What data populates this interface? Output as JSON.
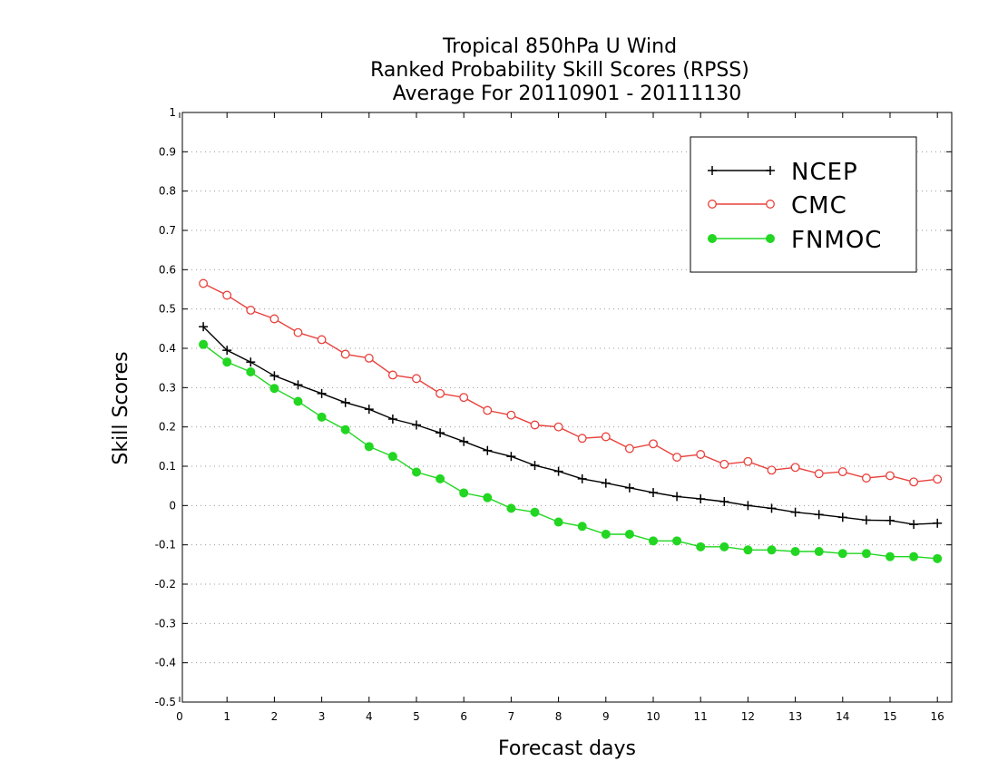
{
  "chart_data": {
    "type": "line",
    "title": [
      "Tropical 850hPa U Wind",
      "Ranked Probability Skill Scores (RPSS)",
      "Average For 20110901 - 20111130"
    ],
    "xlabel": "Forecast days",
    "ylabel": "Skill Scores",
    "xlim": [
      0,
      16.25
    ],
    "ylim": [
      -0.5,
      1
    ],
    "x_ticks": [
      "0",
      "1",
      "2",
      "3",
      "4",
      "5",
      "6",
      "7",
      "8",
      "9",
      "10",
      "11",
      "12",
      "13",
      "14",
      "15",
      "16"
    ],
    "y_ticks": [
      "1",
      "0.9",
      "0.8",
      "0.7",
      "0.6",
      "0.5",
      "0.4",
      "0.3",
      "0.2",
      "0.1",
      "0",
      "-0.1",
      "-0.2",
      "-0.3",
      "-0.4",
      "-0.5"
    ],
    "grid": "horizontal dotted",
    "legend_position": "top-right",
    "x": [
      0.5,
      1,
      1.5,
      2,
      2.5,
      3,
      3.5,
      4,
      4.5,
      5,
      5.5,
      6,
      6.5,
      7,
      7.5,
      8,
      8.5,
      9,
      9.5,
      10,
      10.5,
      11,
      11.5,
      12,
      12.5,
      13,
      13.5,
      14,
      14.5,
      15,
      15.5,
      16
    ],
    "series": [
      {
        "name": "NCEP",
        "color": "#000000",
        "marker": "plus",
        "values": [
          0.455,
          0.395,
          0.365,
          0.33,
          0.307,
          0.285,
          0.262,
          0.245,
          0.22,
          0.205,
          0.185,
          0.163,
          0.14,
          0.125,
          0.102,
          0.087,
          0.068,
          0.057,
          0.045,
          0.033,
          0.023,
          0.017,
          0.01,
          0.0,
          -0.007,
          -0.017,
          -0.023,
          -0.03,
          -0.037,
          -0.038,
          -0.048,
          -0.045
        ]
      },
      {
        "name": "CMC",
        "color": "#e8413c",
        "marker": "open-circle",
        "values": [
          0.565,
          0.535,
          0.497,
          0.475,
          0.44,
          0.422,
          0.385,
          0.375,
          0.332,
          0.323,
          0.285,
          0.275,
          0.242,
          0.23,
          0.205,
          0.2,
          0.171,
          0.175,
          0.145,
          0.157,
          0.123,
          0.13,
          0.105,
          0.112,
          0.09,
          0.097,
          0.081,
          0.086,
          0.07,
          0.076,
          0.06,
          0.067
        ]
      },
      {
        "name": "FNMOC",
        "color": "#22d622",
        "marker": "filled-circle",
        "values": [
          0.41,
          0.365,
          0.34,
          0.298,
          0.265,
          0.225,
          0.193,
          0.15,
          0.125,
          0.085,
          0.068,
          0.032,
          0.02,
          -0.007,
          -0.017,
          -0.042,
          -0.053,
          -0.073,
          -0.073,
          -0.09,
          -0.09,
          -0.105,
          -0.105,
          -0.113,
          -0.113,
          -0.117,
          -0.117,
          -0.122,
          -0.122,
          -0.13,
          -0.13,
          -0.135
        ]
      }
    ]
  }
}
